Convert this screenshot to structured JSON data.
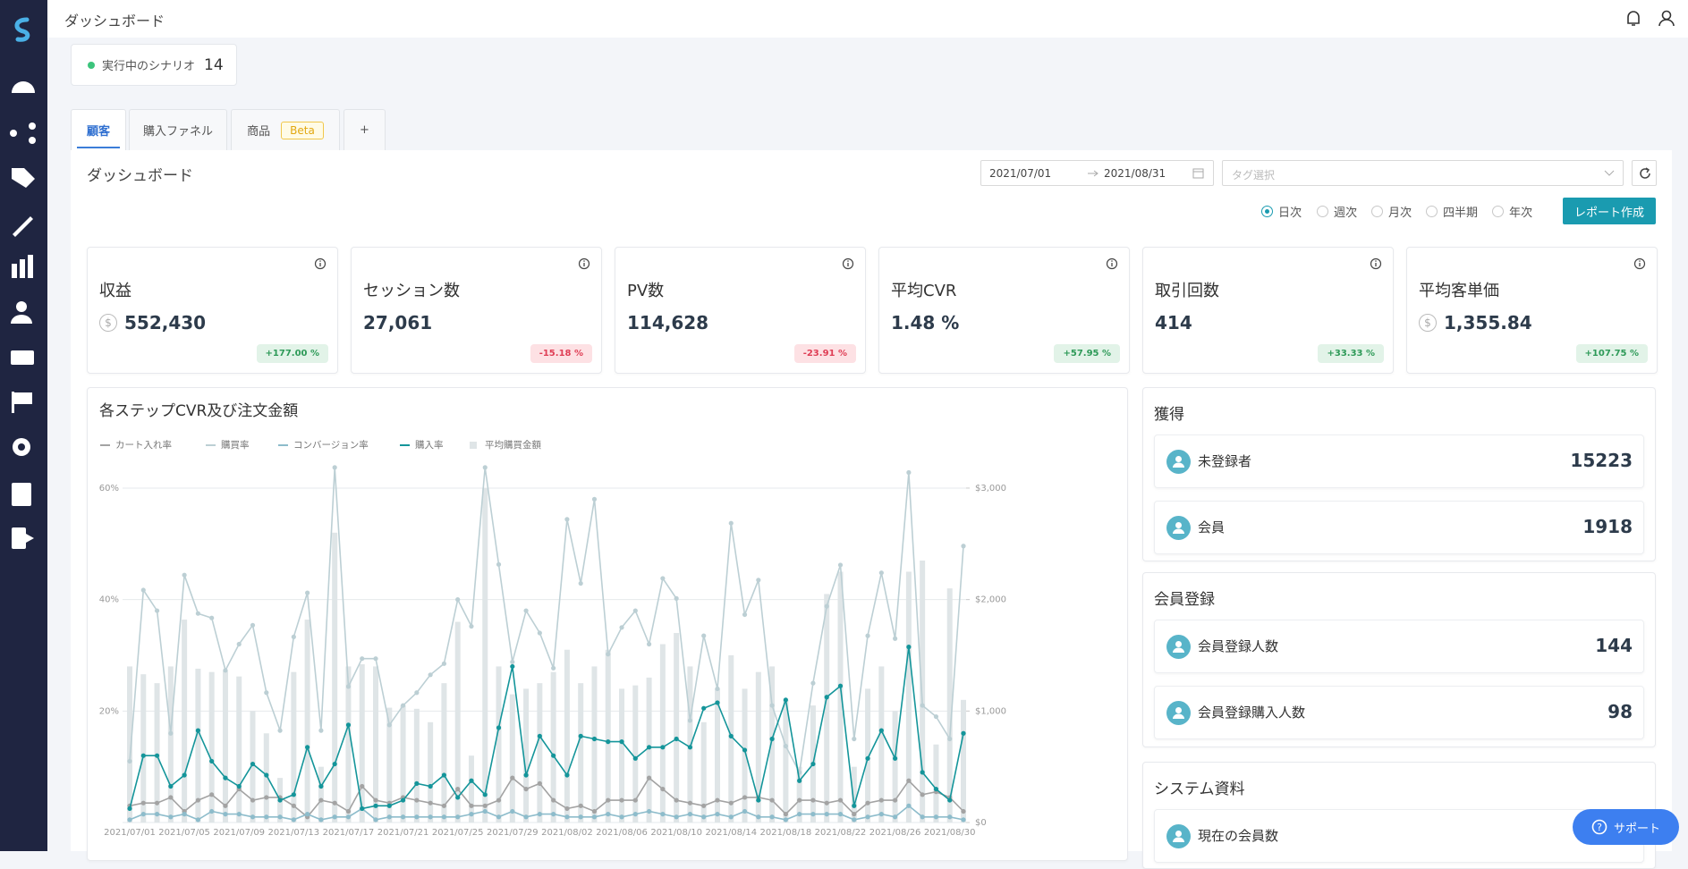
{
  "header": {
    "title": "ダッシュボード"
  },
  "scenario": {
    "label": "実行中のシナリオ",
    "count": 14
  },
  "tabs": [
    {
      "label": "顧客"
    },
    {
      "label": "購入ファネル"
    },
    {
      "label": "商品",
      "badge": "Beta"
    },
    {
      "label": "+"
    }
  ],
  "dashboard": {
    "title": "ダッシュボード",
    "date_start": "2021/07/01",
    "date_end": "2021/08/31",
    "tag_placeholder": "タグ選択",
    "periods": [
      "日次",
      "週次",
      "月次",
      "四半期",
      "年次"
    ],
    "report_button": "レポート作成"
  },
  "kpis": [
    {
      "label": "収益",
      "icon": "$",
      "value": "552,430",
      "change": "+177.00 %"
    },
    {
      "label": "セッション数",
      "value": "27,061",
      "change": "-15.18 %"
    },
    {
      "label": "PV数",
      "value": "114,628",
      "change": "-23.91 %"
    },
    {
      "label": "平均CVR",
      "value": "1.48 %",
      "change": "+57.95 %"
    },
    {
      "label": "取引回数",
      "value": "414",
      "change": "+33.33 %"
    },
    {
      "label": "平均客単価",
      "icon": "$",
      "value": "1,355.84",
      "change": "+107.75 %"
    }
  ],
  "chart_data": {
    "type": "combo",
    "title": "各ステップCVR及び注文金額",
    "categories": [
      "2021/07/01",
      null,
      null,
      null,
      "2021/07/05",
      null,
      null,
      null,
      "2021/07/09",
      null,
      null,
      null,
      "2021/07/13",
      null,
      null,
      null,
      "2021/07/17",
      null,
      null,
      null,
      "2021/07/21",
      null,
      null,
      null,
      "2021/07/25",
      null,
      null,
      null,
      "2021/07/29",
      null,
      null,
      null,
      "2021/08/02",
      null,
      null,
      null,
      "2021/08/06",
      null,
      null,
      null,
      "2021/08/10",
      null,
      null,
      null,
      "2021/08/14",
      null,
      null,
      null,
      "2021/08/18",
      null,
      null,
      null,
      "2021/08/22",
      null,
      null,
      null,
      "2021/08/26",
      null,
      null,
      null,
      "2021/08/30",
      null
    ],
    "series": [
      {
        "name": "カート入れ率",
        "kind": "line",
        "color": "#a3a3a3",
        "values": [
          3,
          3.5,
          3.5,
          4.5,
          2,
          4,
          5,
          3,
          6,
          4,
          4.5,
          4.5,
          3,
          1,
          4,
          3.5,
          2,
          6.5,
          4,
          3.5,
          4.5,
          4,
          3.5,
          3,
          6,
          3,
          3,
          4,
          8,
          6,
          7,
          4,
          2.5,
          3,
          2,
          4,
          4,
          4,
          8,
          6,
          4,
          3.5,
          3,
          4,
          3.5,
          4.5,
          4.5,
          4,
          1.5,
          4,
          4,
          3.5,
          4,
          1.5,
          3.5,
          4,
          4,
          7.5,
          5,
          5.5,
          4.5,
          2
        ]
      },
      {
        "name": "購買率",
        "kind": "line",
        "color": "#bccfd4",
        "values": [
          11,
          41.7,
          38,
          16,
          44.4,
          37.5,
          36.7,
          27.3,
          32,
          35.4,
          23.3,
          16.5,
          33.3,
          41.2,
          16.5,
          63.7,
          24.4,
          29.4,
          29.4,
          17.5,
          21,
          23.3,
          26.5,
          28.5,
          40,
          35.2,
          63.7,
          46.3,
          28.8,
          38,
          34,
          27.7,
          54.4,
          42.9,
          58,
          30.2,
          35,
          38,
          32,
          43.8,
          40.2,
          18.3,
          33.5,
          24,
          53.7,
          37.3,
          43.5,
          21,
          13.7,
          9,
          25,
          38.8,
          46.2,
          15,
          33.5,
          44.8,
          33,
          62.8,
          21,
          19,
          15,
          49.6
        ]
      },
      {
        "name": "コンバージョン率",
        "kind": "line",
        "color": "#8dbccb",
        "values": [
          0.5,
          1.5,
          1.5,
          1,
          1.5,
          0.5,
          2,
          1.5,
          1.5,
          1,
          1,
          1,
          0.5,
          1.5,
          0.5,
          1,
          1,
          2.5,
          0.5,
          1,
          1,
          1,
          1,
          1,
          1,
          1.5,
          2,
          1,
          2,
          1,
          1.5,
          1.5,
          1,
          1,
          1,
          1.5,
          1,
          1.5,
          2,
          1.5,
          1,
          1.5,
          1,
          1.5,
          1,
          2,
          1,
          1,
          0.5,
          1.5,
          1.5,
          1.5,
          1.5,
          0.5,
          1,
          1.5,
          1,
          3,
          1,
          1,
          1,
          0.5
        ]
      },
      {
        "name": "購入率",
        "kind": "line",
        "color": "#14959a",
        "values": [
          2.5,
          12,
          12,
          6.5,
          8.5,
          16.5,
          11,
          8,
          6.5,
          10.5,
          8.5,
          4,
          5,
          13.5,
          6.5,
          10.5,
          17.5,
          2.5,
          3,
          3,
          4,
          7,
          6.5,
          8.5,
          4.5,
          7.5,
          5,
          17,
          28,
          8.5,
          15.5,
          12,
          8.5,
          15.5,
          15,
          14.5,
          14.5,
          11.5,
          13.5,
          13.5,
          15,
          13.5,
          20.5,
          21.5,
          15.5,
          13,
          4,
          15,
          22,
          7.5,
          10.5,
          22.5,
          24.5,
          3,
          11.5,
          16.5,
          11.5,
          31.5,
          9,
          6,
          4,
          16
        ]
      },
      {
        "name": "平均購買金額",
        "kind": "bar",
        "axis": "y2",
        "color": "#dfe5e7",
        "values": [
          1400,
          1330,
          1250,
          1400,
          1820,
          1380,
          1350,
          1360,
          1310,
          1000,
          800,
          400,
          1350,
          1820,
          500,
          2600,
          1400,
          1420,
          1400,
          1030,
          1050,
          1020,
          900,
          1250,
          1800,
          600,
          3000,
          1400,
          1150,
          1200,
          1250,
          1350,
          1550,
          1250,
          1400,
          1550,
          1200,
          1230,
          1300,
          1600,
          1700,
          1400,
          900,
          1200,
          1500,
          1200,
          1350,
          1400,
          1100,
          500,
          1050,
          2050,
          2250,
          500,
          1200,
          1400,
          1000,
          2250,
          2350,
          700,
          2100,
          1100
        ]
      }
    ],
    "ylim": [
      0,
      64
    ],
    "yticks": [
      {
        "value": 20,
        "label": "20%"
      },
      {
        "value": 40,
        "label": "40%"
      },
      {
        "value": 60,
        "label": "60%"
      }
    ],
    "y2lim": [
      0,
      3200
    ],
    "y2ticks": [
      {
        "value": 0,
        "label": "$0"
      },
      {
        "value": 1000,
        "label": "$1,000"
      },
      {
        "value": 2000,
        "label": "$2,000"
      },
      {
        "value": 3000,
        "label": "$3,000"
      }
    ],
    "grid": true,
    "legend": "top"
  },
  "panels": [
    {
      "title": "獲得",
      "items": [
        {
          "label": "未登録者",
          "value": 15223
        },
        {
          "label": "会員",
          "value": 1918
        }
      ]
    },
    {
      "title": "会員登録",
      "items": [
        {
          "label": "会員登録人数",
          "value": 144
        },
        {
          "label": "会員登録購入人数",
          "value": 98
        }
      ]
    },
    {
      "title": "システム資料",
      "items": [
        {
          "label": "現在の会員数"
        }
      ]
    }
  ],
  "support": "サポート"
}
